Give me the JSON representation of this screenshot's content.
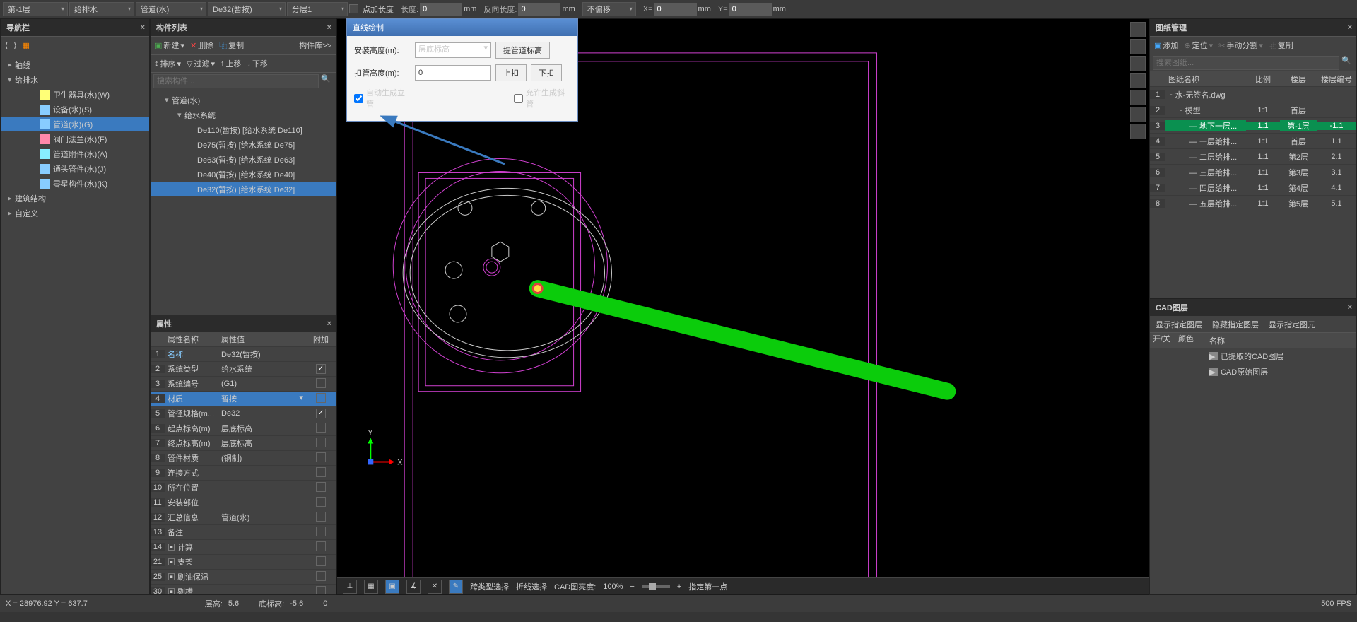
{
  "toolbar": {
    "dropdowns": [
      "第-1层",
      "给排水",
      "管道(水)",
      "De32(暂按)",
      "分层1"
    ],
    "add_len": {
      "chk": "点加长度",
      "len_label": "长度:",
      "len_val": "0",
      "unit": "mm",
      "rev_label": "反向长度:",
      "rev_val": "0"
    },
    "offset": {
      "label": "不偏移",
      "x_label": "X=",
      "x_val": "0",
      "y_label": "Y=",
      "y_val": "0",
      "unit": "mm"
    }
  },
  "nav": {
    "title": "导航栏",
    "toolbar_icons": [
      "⟨",
      "⟩",
      "📄"
    ],
    "tree": [
      {
        "label": "轴线",
        "depth": 0,
        "exp": "▸"
      },
      {
        "label": "给排水",
        "depth": 0,
        "exp": "▾"
      },
      {
        "label": "卫生器具(水)(W)",
        "depth": 2,
        "icon": "#ff7",
        "exp": ""
      },
      {
        "label": "设备(水)(S)",
        "depth": 2,
        "icon": "#8cf",
        "exp": ""
      },
      {
        "label": "管道(水)(G)",
        "depth": 2,
        "icon": "#8cf",
        "sel": true,
        "exp": ""
      },
      {
        "label": "阀门法兰(水)(F)",
        "depth": 2,
        "icon": "#f8a",
        "exp": ""
      },
      {
        "label": "管道附件(水)(A)",
        "depth": 2,
        "icon": "#8ef",
        "exp": ""
      },
      {
        "label": "通头管件(水)(J)",
        "depth": 2,
        "icon": "#8cf",
        "exp": ""
      },
      {
        "label": "零星构件(水)(K)",
        "depth": 2,
        "icon": "#8cf",
        "exp": ""
      },
      {
        "label": "建筑结构",
        "depth": 0,
        "exp": "▸"
      },
      {
        "label": "自定义",
        "depth": 0,
        "exp": "▸"
      }
    ]
  },
  "comp": {
    "title": "构件列表",
    "tb1": {
      "new": "新建",
      "del": "删除",
      "copy": "复制",
      "lib": "构件库>>"
    },
    "tb2": {
      "sort": "排序",
      "filter": "过滤",
      "up": "上移",
      "down": "下移"
    },
    "search_ph": "搜索构件...",
    "tree": [
      {
        "label": "管道(水)",
        "depth": 0,
        "exp": "▾"
      },
      {
        "label": "给水系统",
        "depth": 1,
        "exp": "▾"
      },
      {
        "label": "De110(暂按) [给水系统 De110]",
        "depth": 2
      },
      {
        "label": "De75(暂按) [给水系统 De75]",
        "depth": 2
      },
      {
        "label": "De63(暂按) [给水系统 De63]",
        "depth": 2
      },
      {
        "label": "De40(暂按) [给水系统 De40]",
        "depth": 2
      },
      {
        "label": "De32(暂按) [给水系统 De32]",
        "depth": 2,
        "sel": true
      }
    ]
  },
  "prop": {
    "title": "属性",
    "headers": [
      "",
      "属性名称",
      "属性值",
      "附加"
    ],
    "rows": [
      {
        "n": "1",
        "name": "名称",
        "val": "De32(暂按)",
        "link": true,
        "chk": null
      },
      {
        "n": "2",
        "name": "系统类型",
        "val": "给水系统",
        "chk": true
      },
      {
        "n": "3",
        "name": "系统编号",
        "val": "(G1)",
        "chk": false
      },
      {
        "n": "4",
        "name": "材质",
        "val": "暂按",
        "sel": true,
        "chk": false,
        "has_dd": true
      },
      {
        "n": "5",
        "name": "管径规格(m...",
        "val": "De32",
        "chk": true
      },
      {
        "n": "6",
        "name": "起点标高(m)",
        "val": "层底标高",
        "chk": false
      },
      {
        "n": "7",
        "name": "终点标高(m)",
        "val": "层底标高",
        "chk": false
      },
      {
        "n": "8",
        "name": "管件材质",
        "val": "(钢制)",
        "chk": false
      },
      {
        "n": "9",
        "name": "连接方式",
        "val": "",
        "chk": false
      },
      {
        "n": "10",
        "name": "所在位置",
        "val": "",
        "chk": false
      },
      {
        "n": "11",
        "name": "安装部位",
        "val": "",
        "chk": false
      },
      {
        "n": "12",
        "name": "汇总信息",
        "val": "管道(水)",
        "chk": false
      },
      {
        "n": "13",
        "name": "备注",
        "val": "",
        "chk": false
      },
      {
        "n": "14",
        "name": "计算",
        "val": "",
        "grp": true
      },
      {
        "n": "21",
        "name": "支架",
        "val": "",
        "grp": true
      },
      {
        "n": "25",
        "name": "刷油保温",
        "val": "",
        "grp": true
      },
      {
        "n": "30",
        "name": "剔槽",
        "val": "",
        "grp": true
      }
    ]
  },
  "dialog": {
    "title": "直线绘制",
    "install_h": "安装高度(m):",
    "install_val": "层底标高",
    "get_elev": "提管道标高",
    "clip_h": "扣管高度(m):",
    "clip_val": "0",
    "up": "上扣",
    "down": "下扣",
    "auto_riser": "自动生成立管",
    "allow_diag": "允许生成斜管"
  },
  "draw": {
    "title": "图纸管理",
    "tb": {
      "add": "添加",
      "locate": "定位",
      "manual": "手动分割",
      "copy": "复制"
    },
    "search_ph": "搜索图纸...",
    "headers": [
      "",
      "图纸名称",
      "比例",
      "楼层",
      "楼层编号"
    ],
    "rows": [
      {
        "n": "1",
        "name": "水-无签名.dwg",
        "ratio": "",
        "floor": "",
        "code": "",
        "d": 0,
        "exp": "-"
      },
      {
        "n": "2",
        "name": "模型",
        "ratio": "1:1",
        "floor": "首层",
        "code": "",
        "d": 1,
        "exp": "-"
      },
      {
        "n": "3",
        "name": "地下一层...",
        "ratio": "1:1",
        "floor": "第-1层",
        "code": "-1.1",
        "d": 2,
        "sel": true
      },
      {
        "n": "4",
        "name": "一层给排...",
        "ratio": "1:1",
        "floor": "首层",
        "code": "1.1",
        "d": 2
      },
      {
        "n": "5",
        "name": "二层给排...",
        "ratio": "1:1",
        "floor": "第2层",
        "code": "2.1",
        "d": 2
      },
      {
        "n": "6",
        "name": "三层给排...",
        "ratio": "1:1",
        "floor": "第3层",
        "code": "3.1",
        "d": 2
      },
      {
        "n": "7",
        "name": "四层给排...",
        "ratio": "1:1",
        "floor": "第4层",
        "code": "4.1",
        "d": 2
      },
      {
        "n": "8",
        "name": "五层给排...",
        "ratio": "1:1",
        "floor": "第5层",
        "code": "5.1",
        "d": 2
      }
    ]
  },
  "cad": {
    "title": "CAD图层",
    "tabs": [
      "显示指定图层",
      "隐藏指定图层",
      "显示指定图元"
    ],
    "headers": [
      "开/关",
      "颜色",
      "名称"
    ],
    "rows": [
      {
        "on": true,
        "name": "已提取的CAD图层"
      },
      {
        "on": true,
        "name": "CAD原始图层"
      }
    ]
  },
  "vstatus": {
    "labels": {
      "cross": "跨类型选择",
      "polyline": "折线选择",
      "bright_l": "CAD图亮度:",
      "bright_v": "100%",
      "hint": "指定第一点"
    }
  },
  "status": {
    "coord": "X = 28976.92 Y = 637.7",
    "floor_h_l": "层高:",
    "floor_h_v": "5.6",
    "bot_elev_l": "底标高:",
    "bot_elev_v": "-5.6",
    "zero": "0",
    "fps": "500 FPS"
  }
}
